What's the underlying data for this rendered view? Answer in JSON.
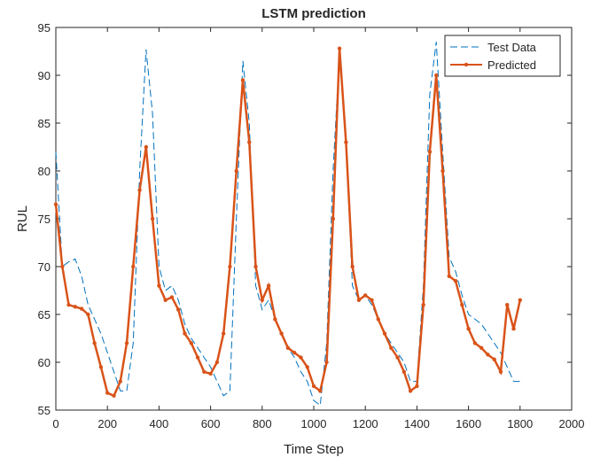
{
  "chart_data": {
    "type": "line",
    "title": "LSTM prediction",
    "x_label": "Time Step",
    "y_label": "RUL",
    "x": [
      0,
      25,
      50,
      75,
      100,
      125,
      150,
      175,
      200,
      225,
      250,
      275,
      300,
      325,
      350,
      375,
      400,
      425,
      450,
      475,
      500,
      525,
      550,
      575,
      600,
      625,
      650,
      675,
      700,
      725,
      750,
      775,
      800,
      825,
      850,
      875,
      900,
      925,
      950,
      975,
      1000,
      1025,
      1050,
      1075,
      1100,
      1125,
      1150,
      1175,
      1200,
      1225,
      1250,
      1275,
      1300,
      1325,
      1350,
      1375,
      1400,
      1425,
      1450,
      1475,
      1500,
      1525,
      1550,
      1575,
      1600,
      1625,
      1650,
      1675,
      1700,
      1725,
      1750,
      1775,
      1800
    ],
    "series": [
      {
        "name": "Test Data",
        "color": "#0072bd",
        "dash": true,
        "values": [
          82,
          70,
          70.5,
          70.8,
          69,
          66,
          64.5,
          63,
          61,
          59,
          57,
          57,
          62,
          80,
          92.7,
          86,
          70,
          67.5,
          68,
          66.5,
          64,
          62.5,
          61.5,
          60.5,
          59.5,
          58,
          56.5,
          57,
          75,
          91.5,
          85,
          68,
          65.5,
          66.5,
          64.5,
          63,
          61.5,
          60.5,
          59,
          58,
          56,
          55.5,
          62,
          80,
          92.5,
          83,
          68,
          66.5,
          67,
          66,
          64.5,
          63,
          62,
          61,
          60,
          58,
          58,
          68,
          88,
          93.5,
          82,
          71,
          69.5,
          67,
          65,
          64.5,
          64,
          63,
          62,
          61,
          59.5,
          58,
          58
        ]
      },
      {
        "name": "Predicted",
        "color": "#d95319",
        "dash": false,
        "values": [
          76.5,
          70,
          66,
          65.8,
          65.6,
          65,
          62,
          59.5,
          56.8,
          56.5,
          58,
          62,
          70,
          78,
          82.5,
          75,
          68,
          66.5,
          66.8,
          65.5,
          63,
          62,
          60.5,
          59,
          58.8,
          60,
          63,
          70,
          80,
          89.5,
          83,
          70,
          66.5,
          68,
          64.5,
          63,
          61.5,
          61,
          60.5,
          59.5,
          57.5,
          57,
          60,
          75,
          92.8,
          83,
          70,
          66.5,
          67,
          66.5,
          64.5,
          63,
          61.5,
          60.5,
          59,
          57,
          57.5,
          66,
          82,
          90,
          80,
          69,
          68.5,
          66,
          63.5,
          62,
          61.5,
          60.8,
          60.3,
          59,
          66,
          63.5,
          66.5
        ]
      }
    ],
    "xlim": [
      0,
      2000
    ],
    "xticks": [
      0,
      200,
      400,
      600,
      800,
      1000,
      1200,
      1400,
      1600,
      1800,
      2000
    ],
    "ylim": [
      55,
      95
    ],
    "yticks": [
      55,
      60,
      65,
      70,
      75,
      80,
      85,
      90,
      95
    ],
    "legend": "northeast"
  }
}
